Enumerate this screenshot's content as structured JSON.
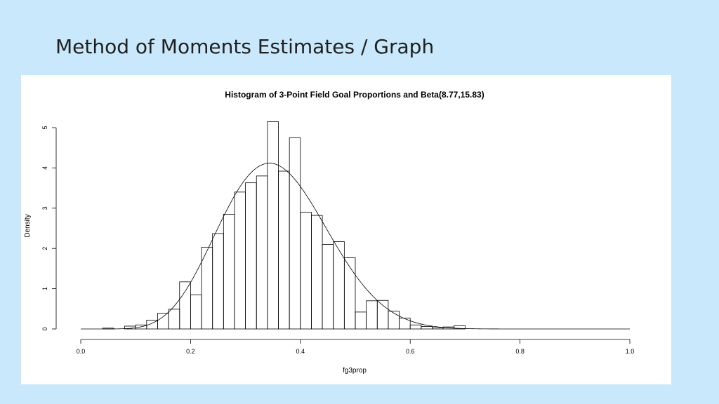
{
  "slide": {
    "title": "Method of Moments Estimates / Graph"
  },
  "colors": {
    "background": "#c9e8fb",
    "panel": "#ffffff",
    "ink": "#000000"
  },
  "chart_data": {
    "type": "bar",
    "title": "Histogram of 3-Point Field Goal Proportions and Beta(8.77,15.83)",
    "xlabel": "fg3prop",
    "ylabel": "Density",
    "xlim": [
      0,
      1
    ],
    "ylim": [
      0,
      5.2
    ],
    "x_ticks": [
      "0.0",
      "0.2",
      "0.4",
      "0.6",
      "0.8",
      "1.0"
    ],
    "y_ticks": [
      "0",
      "1",
      "2",
      "3",
      "4",
      "5"
    ],
    "grid": false,
    "bin_width": 0.02,
    "bins": [
      {
        "start": 0.04,
        "density": 0.02
      },
      {
        "start": 0.06,
        "density": 0.0
      },
      {
        "start": 0.08,
        "density": 0.07
      },
      {
        "start": 0.1,
        "density": 0.1
      },
      {
        "start": 0.12,
        "density": 0.22
      },
      {
        "start": 0.14,
        "density": 0.39
      },
      {
        "start": 0.16,
        "density": 0.49
      },
      {
        "start": 0.18,
        "density": 1.17
      },
      {
        "start": 0.2,
        "density": 0.85
      },
      {
        "start": 0.22,
        "density": 2.03
      },
      {
        "start": 0.24,
        "density": 2.37
      },
      {
        "start": 0.26,
        "density": 2.85
      },
      {
        "start": 0.28,
        "density": 3.4
      },
      {
        "start": 0.3,
        "density": 3.63
      },
      {
        "start": 0.32,
        "density": 3.8
      },
      {
        "start": 0.34,
        "density": 5.15
      },
      {
        "start": 0.36,
        "density": 3.92
      },
      {
        "start": 0.38,
        "density": 4.75
      },
      {
        "start": 0.4,
        "density": 2.9
      },
      {
        "start": 0.42,
        "density": 2.82
      },
      {
        "start": 0.44,
        "density": 2.1
      },
      {
        "start": 0.46,
        "density": 2.17
      },
      {
        "start": 0.48,
        "density": 1.77
      },
      {
        "start": 0.5,
        "density": 0.42
      },
      {
        "start": 0.52,
        "density": 0.7
      },
      {
        "start": 0.54,
        "density": 0.71
      },
      {
        "start": 0.56,
        "density": 0.44
      },
      {
        "start": 0.58,
        "density": 0.27
      },
      {
        "start": 0.6,
        "density": 0.1
      },
      {
        "start": 0.62,
        "density": 0.06
      },
      {
        "start": 0.64,
        "density": 0.03
      },
      {
        "start": 0.66,
        "density": 0.05
      },
      {
        "start": 0.68,
        "density": 0.08
      }
    ],
    "curve": {
      "type": "line",
      "distribution": "beta",
      "alpha": 8.77,
      "beta": 15.83
    }
  }
}
